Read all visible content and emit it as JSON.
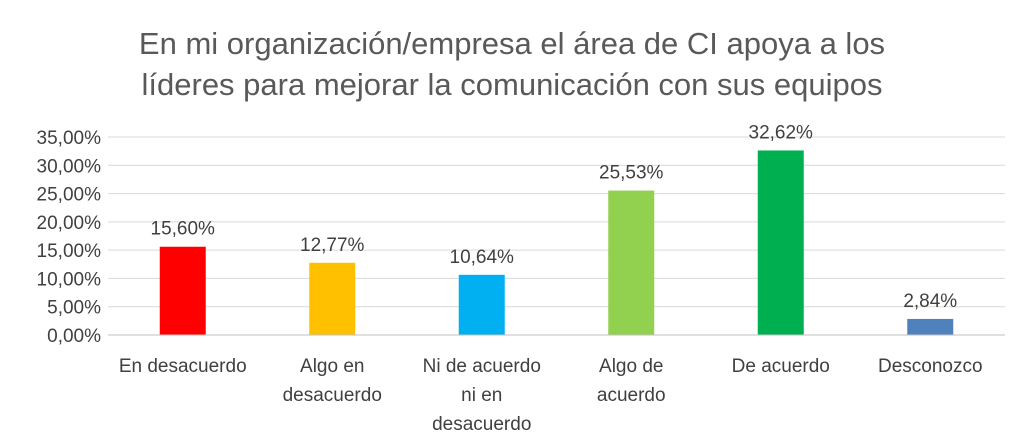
{
  "chart_data": {
    "type": "bar",
    "title_lines": [
      "En mi organización/empresa el área de CI apoya a los",
      "líderes para mejorar la comunicación con sus equipos"
    ],
    "categories": [
      [
        "En desacuerdo"
      ],
      [
        "Algo en",
        "desacuerdo"
      ],
      [
        "Ni de acuerdo",
        "ni en",
        "desacuerdo"
      ],
      [
        "Algo de",
        "acuerdo"
      ],
      [
        "De acuerdo"
      ],
      [
        "Desconozco"
      ]
    ],
    "values": [
      15.6,
      12.77,
      10.64,
      25.53,
      32.62,
      2.84
    ],
    "data_labels": [
      "15,60%",
      "12,77%",
      "10,64%",
      "25,53%",
      "32,62%",
      "2,84%"
    ],
    "colors": [
      "#ff0000",
      "#ffc000",
      "#00b0f0",
      "#92d050",
      "#00b050",
      "#4f81bd"
    ],
    "ylim": [
      0,
      35
    ],
    "yticks": [
      0,
      5,
      10,
      15,
      20,
      25,
      30,
      35
    ],
    "ytick_labels": [
      "0,00%",
      "5,00%",
      "10,00%",
      "15,00%",
      "20,00%",
      "25,00%",
      "30,00%",
      "35,00%"
    ],
    "grid": true,
    "legend": "none"
  }
}
